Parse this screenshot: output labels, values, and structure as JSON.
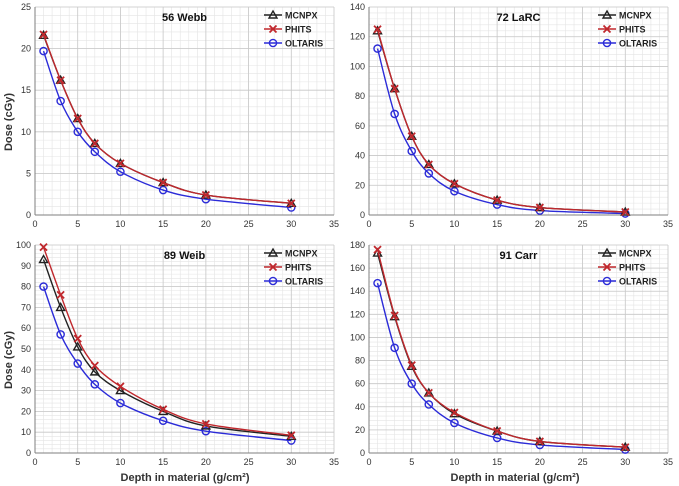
{
  "figure": {
    "ylabel": "Dose (cGy)",
    "xlabel": "Depth in material (g/cm²)"
  },
  "legend_labels": [
    "MCNPX",
    "PHITS",
    "OLTARIS"
  ],
  "colors": {
    "MCNPX": "#222222",
    "PHITS": "#c0282d",
    "OLTARIS": "#2b2bd8",
    "grid": "#c8c8c8",
    "axis": "#7f7f7f"
  },
  "chart_data": [
    {
      "type": "line",
      "title": "56 Webb",
      "x": [
        1,
        3,
        5,
        7,
        10,
        15,
        20,
        30
      ],
      "xlim": [
        0,
        35
      ],
      "xticks": [
        0,
        5,
        10,
        15,
        20,
        25,
        30,
        35
      ],
      "ylim": [
        0,
        25
      ],
      "yticks": [
        0,
        5,
        10,
        15,
        20,
        25
      ],
      "grid": true,
      "legend": "top-right",
      "series": [
        {
          "name": "MCNPX",
          "values": [
            21.6,
            16.2,
            11.6,
            8.6,
            6.2,
            3.9,
            2.4,
            1.4
          ]
        },
        {
          "name": "PHITS",
          "values": [
            21.7,
            16.2,
            11.6,
            8.6,
            6.2,
            3.9,
            2.4,
            1.4
          ]
        },
        {
          "name": "OLTARIS",
          "values": [
            19.7,
            13.7,
            10.0,
            7.6,
            5.2,
            3.0,
            1.9,
            0.9
          ]
        }
      ]
    },
    {
      "type": "line",
      "title": "72 LaRC",
      "x": [
        1,
        3,
        5,
        7,
        10,
        15,
        20,
        30
      ],
      "xlim": [
        0,
        35
      ],
      "xticks": [
        0,
        5,
        10,
        15,
        20,
        25,
        30,
        35
      ],
      "ylim": [
        0,
        140
      ],
      "yticks": [
        0,
        20,
        40,
        60,
        80,
        100,
        120,
        140
      ],
      "grid": true,
      "legend": "top-right",
      "series": [
        {
          "name": "MCNPX",
          "values": [
            124,
            85,
            53,
            34,
            21,
            10,
            5,
            2
          ]
        },
        {
          "name": "PHITS",
          "values": [
            125,
            85,
            53,
            34,
            21,
            10,
            5,
            2
          ]
        },
        {
          "name": "OLTARIS",
          "values": [
            112,
            68,
            43,
            28,
            16,
            7,
            3,
            1
          ]
        }
      ]
    },
    {
      "type": "line",
      "title": "89 Weib",
      "x": [
        1,
        3,
        5,
        7,
        10,
        15,
        20,
        30
      ],
      "xlim": [
        0,
        35
      ],
      "xticks": [
        0,
        5,
        10,
        15,
        20,
        25,
        30,
        35
      ],
      "ylim": [
        0,
        100
      ],
      "yticks": [
        0,
        10,
        20,
        30,
        40,
        50,
        60,
        70,
        80,
        90,
        100
      ],
      "grid": true,
      "legend": "top-right",
      "series": [
        {
          "name": "MCNPX",
          "values": [
            93,
            70,
            51,
            39,
            30,
            20,
            13,
            8
          ]
        },
        {
          "name": "PHITS",
          "values": [
            99,
            76,
            55,
            42,
            32,
            21,
            14,
            8.5
          ]
        },
        {
          "name": "OLTARIS",
          "values": [
            80,
            57,
            43,
            33,
            24,
            15.5,
            10.5,
            6
          ]
        }
      ]
    },
    {
      "type": "line",
      "title": "91 Carr",
      "x": [
        1,
        3,
        5,
        7,
        10,
        15,
        20,
        30
      ],
      "xlim": [
        0,
        35
      ],
      "xticks": [
        0,
        5,
        10,
        15,
        20,
        25,
        30,
        35
      ],
      "ylim": [
        0,
        180
      ],
      "yticks": [
        0,
        20,
        40,
        60,
        80,
        100,
        120,
        140,
        160,
        180
      ],
      "grid": true,
      "legend": "top-right",
      "series": [
        {
          "name": "MCNPX",
          "values": [
            173,
            118,
            75,
            52,
            34,
            19,
            10,
            5
          ]
        },
        {
          "name": "PHITS",
          "values": [
            176,
            119,
            76,
            52,
            35,
            19,
            10,
            5
          ]
        },
        {
          "name": "OLTARIS",
          "values": [
            147,
            91,
            60,
            42,
            26,
            13,
            7,
            3
          ]
        }
      ]
    }
  ]
}
